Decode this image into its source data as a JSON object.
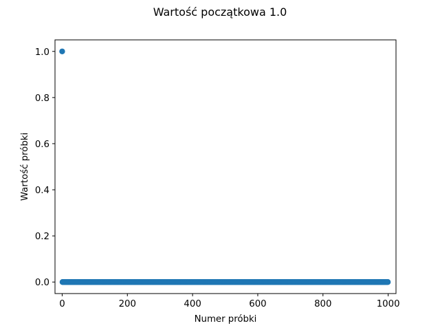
{
  "chart_data": {
    "type": "scatter",
    "title": "Wartość początkowa 1.0",
    "xlabel": "Numer próbki",
    "ylabel": "Wartość próbki",
    "xlim": [
      -22,
      1024
    ],
    "ylim": [
      -0.05,
      1.05
    ],
    "x_ticks": [
      0,
      200,
      400,
      600,
      800,
      1000
    ],
    "y_ticks": [
      0.0,
      0.2,
      0.4,
      0.6,
      0.8,
      1.0
    ],
    "x_tick_labels": [
      "0",
      "200",
      "400",
      "600",
      "800",
      "1000"
    ],
    "y_tick_labels": [
      "0.0",
      "0.2",
      "0.4",
      "0.6",
      "0.8",
      "1.0"
    ],
    "marker_color": "#1f77b4",
    "grid": false,
    "series": [
      {
        "x_start": 0,
        "x_end": 999,
        "x_step": 1,
        "values_description_note": "",
        "nonzero_points": [
          [
            0,
            1.0
          ]
        ],
        "default_value": 0.0
      }
    ]
  }
}
